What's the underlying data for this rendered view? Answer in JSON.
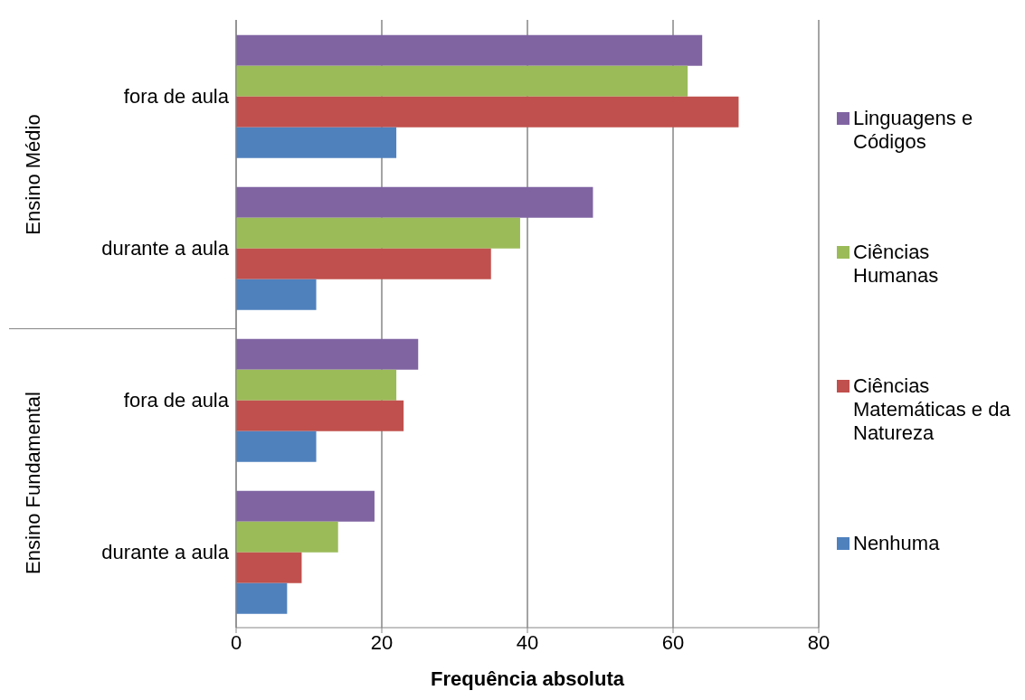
{
  "chart_data": {
    "type": "bar",
    "orientation": "horizontal",
    "xlabel": "Frequência absoluta",
    "categories": [
      "fora de aula",
      "durante a aula",
      "fora de aula",
      "durante a aula"
    ],
    "annotations": [
      "Ensino Médio",
      "Ensino Fundamental"
    ],
    "series": [
      {
        "name": "Linguagens e Códigos",
        "color": "#8064a2",
        "values": [
          64,
          49,
          25,
          19
        ]
      },
      {
        "name": "Ciências Humanas",
        "color": "#9bbb59",
        "values": [
          62,
          39,
          22,
          14
        ]
      },
      {
        "name": "Ciências Matemáticas e da Natureza",
        "color": "#c0504d",
        "values": [
          69,
          35,
          23,
          9
        ]
      },
      {
        "name": "Nenhuma",
        "color": "#4f81bd",
        "values": [
          22,
          11,
          11,
          7
        ]
      }
    ],
    "xlim": [
      0,
      80
    ],
    "xticks": [
      0,
      20,
      40,
      60,
      80
    ],
    "grid": "x",
    "legend": "right"
  }
}
